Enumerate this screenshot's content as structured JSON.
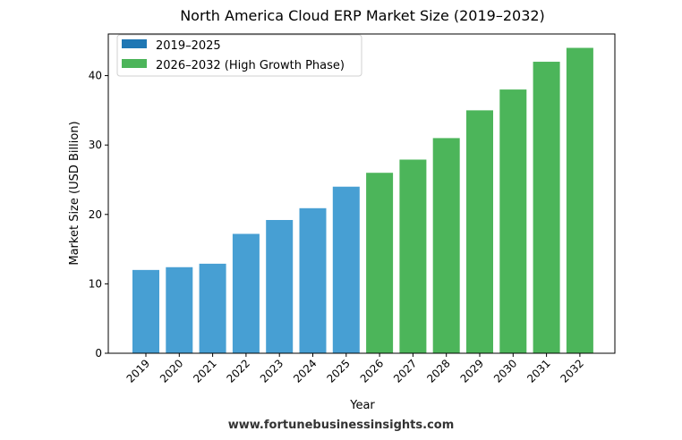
{
  "chart_data": {
    "type": "bar",
    "title": "North America Cloud ERP Market Size (2019–2032)",
    "xlabel": "Year",
    "ylabel": "Market Size (USD Billion)",
    "ylim": [
      0,
      46
    ],
    "yticks": [
      0,
      10,
      20,
      30,
      40
    ],
    "grid": false,
    "legend_position": "top-left",
    "categories": [
      "2019",
      "2020",
      "2021",
      "2022",
      "2023",
      "2024",
      "2025",
      "2026",
      "2027",
      "2028",
      "2029",
      "2030",
      "2031",
      "2032"
    ],
    "values": [
      12.0,
      12.4,
      12.9,
      17.2,
      19.2,
      20.9,
      24.0,
      26.0,
      27.9,
      31.0,
      35.0,
      38.0,
      42.0,
      44.0
    ],
    "series": [
      {
        "name": "2019–2025",
        "legend_color": "#1f77b4",
        "bar_color": "#479fd3",
        "categories": [
          "2019",
          "2020",
          "2021",
          "2022",
          "2023",
          "2024",
          "2025"
        ],
        "values": [
          12.0,
          12.4,
          12.9,
          17.2,
          19.2,
          20.9,
          24.0
        ]
      },
      {
        "name": "2026–2032 (High Growth Phase)",
        "legend_color": "#4cb55a",
        "bar_color": "#4cb55a",
        "categories": [
          "2026",
          "2027",
          "2028",
          "2029",
          "2030",
          "2031",
          "2032"
        ],
        "values": [
          26.0,
          27.9,
          31.0,
          35.0,
          38.0,
          42.0,
          44.0
        ]
      }
    ]
  },
  "watermark": "www.fortunebusinessinsights.com"
}
